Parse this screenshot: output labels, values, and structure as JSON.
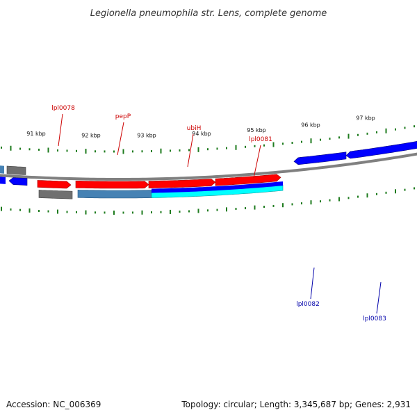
{
  "title": "Legionella pneumophila str. Lens, complete genome",
  "accession": "Accession: NC_006369",
  "topology": "Topology: circular; Length: 3,345,687 bp; Genes: 2,931",
  "colors": {
    "backbone": "#808080",
    "gc_tick": "#1e7b1e",
    "gene_red": "#ff0000",
    "gene_blue": "#0000ff",
    "gene_gray": "#707070",
    "gene_steel": "#4682b4",
    "gene_cyan": "#00ffff",
    "label_red": "#cc0000",
    "label_blue": "#0000aa"
  },
  "scale_labels": [
    "91 kbp",
    "92 kbp",
    "93 kbp",
    "94 kbp",
    "95 kbp",
    "96 kbp",
    "97 kbp"
  ],
  "gene_labels": [
    {
      "text": "lpl0078",
      "color": "red"
    },
    {
      "text": "pepP",
      "color": "red"
    },
    {
      "text": "ubiH",
      "color": "red"
    },
    {
      "text": "lpl0081",
      "color": "red"
    },
    {
      "text": "lpl0082",
      "color": "blue"
    },
    {
      "text": "lpl0083",
      "color": "blue"
    }
  ]
}
